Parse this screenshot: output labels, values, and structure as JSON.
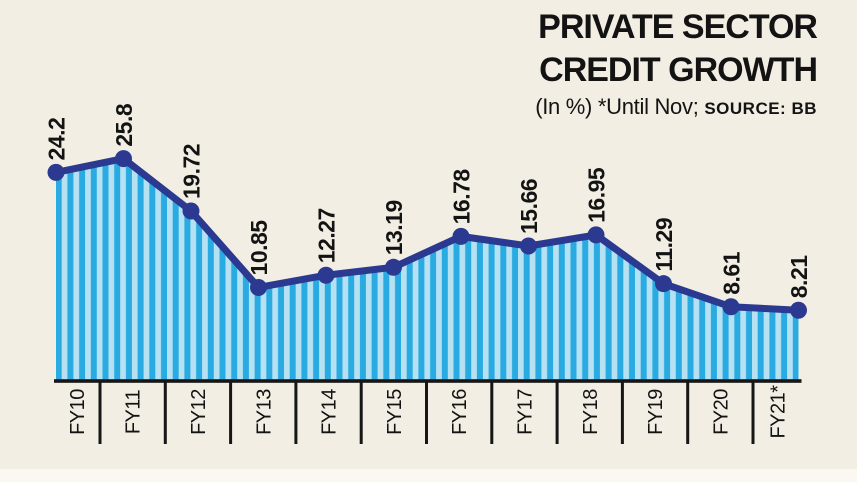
{
  "header": {
    "title_line1": "PRIVATE SECTOR",
    "title_line2": "CREDIT GROWTH",
    "note": "(In %) *Until Nov;",
    "source": "SOURCE: BB"
  },
  "chart_data": {
    "type": "area",
    "title": "PRIVATE SECTOR CREDIT GROWTH",
    "subtitle": "(In %) *Until Nov; SOURCE: BB",
    "categories": [
      "FY10",
      "FY11",
      "FY12",
      "FY13",
      "FY14",
      "FY15",
      "FY16",
      "FY17",
      "FY18",
      "FY19",
      "FY20",
      "FY21*"
    ],
    "values": [
      24.2,
      25.8,
      19.72,
      10.85,
      12.27,
      13.19,
      16.78,
      15.66,
      16.95,
      11.29,
      8.61,
      8.21
    ],
    "value_labels": [
      "24.2",
      "25.8",
      "19.72",
      "10.85",
      "12.27",
      "13.19",
      "16.78",
      "15.66",
      "16.95",
      "11.29",
      "8.61",
      "8.21"
    ],
    "xlabel": "",
    "ylabel": "",
    "ylim": [
      0,
      28
    ],
    "grid": false,
    "legend": false,
    "style": "striped-area-with-line-and-markers",
    "colors": {
      "line": "#2b3990",
      "marker": "#2b3990",
      "stripe_dark": "#29abe2",
      "stripe_light": "#b6e1f3",
      "axis": "#161616",
      "text": "#131313",
      "background": "#f2eee3",
      "bottom_strip": "#faf8f1"
    }
  }
}
